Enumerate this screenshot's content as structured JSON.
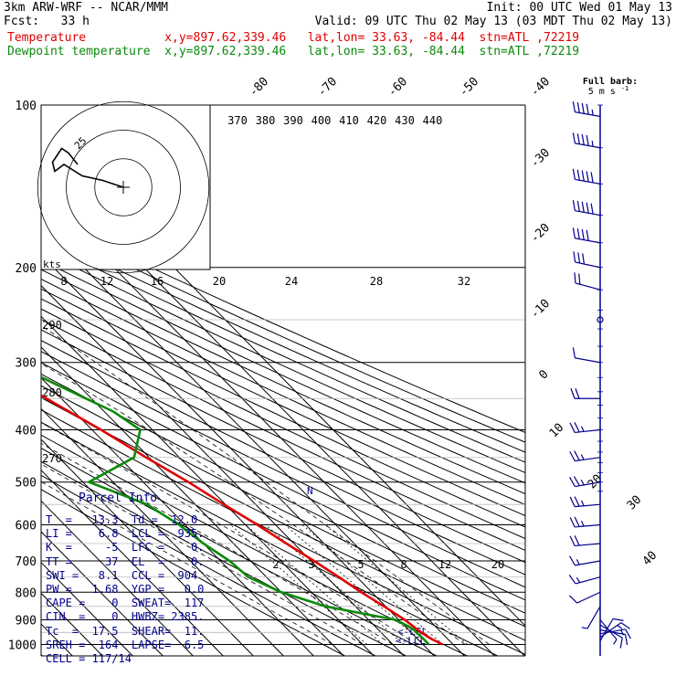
{
  "header": {
    "model": "3km ARW-WRF -- NCAR/MMM",
    "init": "Init: 00 UTC Wed 01 May 13",
    "fcst": "Fcst:   33 h",
    "valid": "Valid: 09 UTC Thu 02 May 13 (03 MDT Thu 02 May 13)",
    "temp_line": "Temperature           x,y=897.62,339.46   lat,lon= 33.63, -84.44  stn=ATL ,72219",
    "dewp_line": "Dewpoint temperature  x,y=897.62,339.46   lat,lon= 33.63, -84.44  stn=ATL ,72219"
  },
  "colors": {
    "temperature": "#e00000",
    "dewpoint": "#0a8a0a",
    "wind": "#00008b",
    "axes": "#000000"
  },
  "chart_data": {
    "type": "line",
    "title": "",
    "ylabel": "",
    "y_scale": "log-pressure",
    "pressure_labels": [
      "100",
      "200",
      "300",
      "400",
      "500",
      "600",
      "700",
      "800",
      "900",
      "1000"
    ],
    "isotherm_labels": [
      "-80",
      "-70",
      "-60",
      "-50",
      "-40",
      "-30",
      "-20",
      "-10",
      "0",
      "10",
      "20",
      "30",
      "40"
    ],
    "theta_labels": [
      "370",
      "380",
      "390",
      "400",
      "410",
      "420",
      "430",
      "440"
    ],
    "mixing_ratio_labels": [
      "8",
      "12",
      "16",
      "20",
      "24",
      "28",
      "32"
    ],
    "hodo": {
      "unit_label": "kts",
      "ring_label": "25",
      "ring_speeds_kt": [
        12.5,
        25,
        37.5
      ],
      "points_kt": [
        [
          0,
          0
        ],
        [
          -9,
          3
        ],
        [
          -18,
          5
        ],
        [
          -26,
          10
        ],
        [
          -30,
          7
        ],
        [
          -31,
          11
        ],
        [
          -27,
          17
        ],
        [
          -24,
          15
        ],
        [
          -20,
          10
        ]
      ]
    },
    "lower_labels": {
      "mixing_ratio": [
        "2",
        "3",
        "5",
        "8",
        "12",
        "20"
      ],
      "theta": [
        "290",
        "280",
        "270"
      ],
      "lcl_markers": [
        "<-LCL",
        "<-LCL"
      ]
    },
    "wind_legend": {
      "title": "Full barb:",
      "value": "5 m s",
      "exponent": "-1"
    },
    "series": [
      {
        "name": "Temperature",
        "points": [
          [
            1000,
            16.5
          ],
          [
            975,
            14.5
          ],
          [
            950,
            13.3
          ],
          [
            900,
            12
          ],
          [
            850,
            9.5
          ],
          [
            800,
            6.5
          ],
          [
            750,
            4
          ],
          [
            700,
            1
          ],
          [
            650,
            -2.5
          ],
          [
            600,
            -6
          ],
          [
            550,
            -10.5
          ],
          [
            500,
            -15
          ],
          [
            450,
            -21
          ],
          [
            400,
            -27
          ],
          [
            350,
            -35
          ],
          [
            300,
            -42.5
          ],
          [
            250,
            -52
          ],
          [
            210,
            -57
          ],
          [
            200,
            -58
          ],
          [
            185,
            -57
          ],
          [
            160,
            -55
          ],
          [
            140,
            -52
          ],
          [
            120,
            -48
          ],
          [
            100,
            -46
          ]
        ]
      },
      {
        "name": "Dewpoint temperature",
        "points": [
          [
            1000,
            12
          ],
          [
            975,
            12
          ],
          [
            950,
            11.7
          ],
          [
            940,
            11.8
          ],
          [
            925,
            11
          ],
          [
            900,
            9
          ],
          [
            850,
            -10
          ],
          [
            800,
            -20
          ],
          [
            750,
            -26
          ],
          [
            700,
            -27
          ],
          [
            650,
            -30
          ],
          [
            600,
            -32
          ],
          [
            550,
            -36
          ],
          [
            500,
            -48
          ],
          [
            450,
            -25
          ],
          [
            400,
            -14
          ],
          [
            370,
            -17
          ],
          [
            330,
            -27
          ],
          [
            300,
            -35
          ],
          [
            250,
            -50
          ],
          [
            220,
            -62
          ],
          [
            200,
            -70
          ],
          [
            180,
            -75
          ],
          [
            150,
            -78
          ],
          [
            120,
            -82
          ],
          [
            100,
            -85
          ]
        ]
      }
    ],
    "wind_profile": [
      {
        "p": 985,
        "dir": 30,
        "kt": 12
      },
      {
        "p": 970,
        "dir": 55,
        "kt": 13
      },
      {
        "p": 955,
        "dir": 80,
        "kt": 13
      },
      {
        "p": 940,
        "dir": 100,
        "kt": 11
      },
      {
        "p": 920,
        "dir": 120,
        "kt": 9
      },
      {
        "p": 900,
        "dir": 140,
        "kt": 7
      },
      {
        "p": 850,
        "dir": 210,
        "kt": 6
      },
      {
        "p": 800,
        "dir": 245,
        "kt": 9
      },
      {
        "p": 750,
        "dir": 255,
        "kt": 13
      },
      {
        "p": 700,
        "dir": 260,
        "kt": 17
      },
      {
        "p": 650,
        "dir": 265,
        "kt": 21
      },
      {
        "p": 600,
        "dir": 265,
        "kt": 24
      },
      {
        "p": 550,
        "dir": 265,
        "kt": 26
      },
      {
        "p": 500,
        "dir": 260,
        "kt": 27
      },
      {
        "p": 450,
        "dir": 262,
        "kt": 26
      },
      {
        "p": 400,
        "dir": 264,
        "kt": 24
      },
      {
        "p": 350,
        "dir": 270,
        "kt": 18
      },
      {
        "p": 300,
        "dir": 280,
        "kt": 8
      },
      {
        "p": 250,
        "dir": 300,
        "kt": 0
      },
      {
        "p": 220,
        "dir": 285,
        "kt": 20
      },
      {
        "p": 200,
        "dir": 282,
        "kt": 30
      },
      {
        "p": 180,
        "dir": 280,
        "kt": 40
      },
      {
        "p": 160,
        "dir": 280,
        "kt": 48
      },
      {
        "p": 140,
        "dir": 280,
        "kt": 48
      },
      {
        "p": 120,
        "dir": 280,
        "kt": 47
      },
      {
        "p": 105,
        "dir": 280,
        "kt": 45
      }
    ]
  },
  "parcel_info": {
    "title": "Parcel Info",
    "rows": [
      "T  =   13.3  Td =  12.0",
      "LI =    6.8  LCL =  935.",
      "K  =     -5  LFC =    0.",
      "TT =     37  EL  =    0.",
      "SWI =   8.1  CCL =  904",
      "PW =   1.68  YGP =   0.0",
      "CAPE =    0  SWEAT=  117",
      "CIN  =    0  HWBZ= 2385.",
      "Tc  =  17.5  SHEAR=  11.",
      "SREH =  164  LAPSE=  6.5",
      "CELL = 117/14"
    ]
  }
}
